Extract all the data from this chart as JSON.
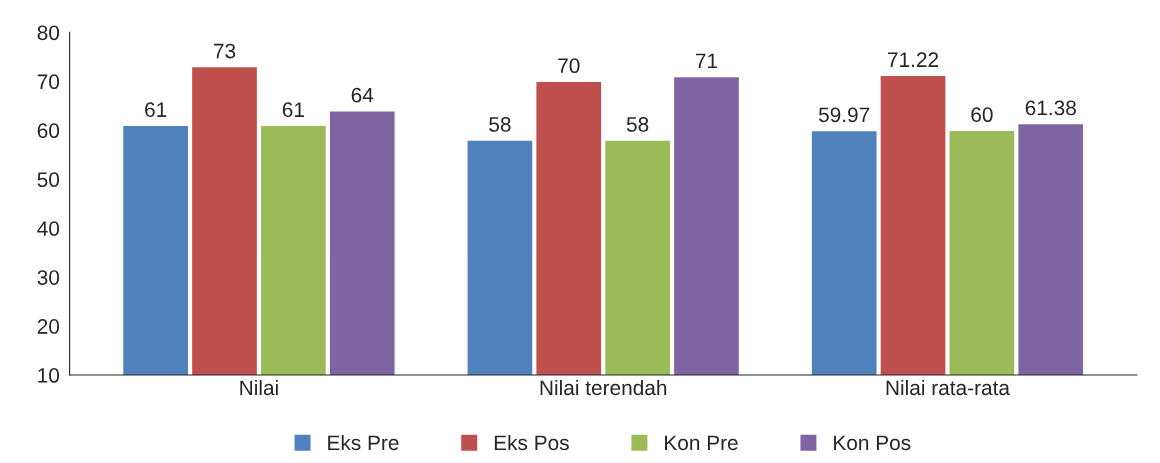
{
  "chart_data": {
    "type": "bar",
    "categories": [
      "Nilai",
      "Nilai terendah",
      "Nilai rata-rata"
    ],
    "series": [
      {
        "name": "Eks Pre",
        "color": "#4f81bd",
        "values": [
          61,
          58,
          59.97
        ]
      },
      {
        "name": "Eks Pos",
        "color": "#c0504d",
        "values": [
          73,
          70,
          71.22
        ]
      },
      {
        "name": "Kon Pre",
        "color": "#9bbb59",
        "values": [
          61,
          58,
          60
        ]
      },
      {
        "name": "Kon Pos",
        "color": "#8064a2",
        "values": [
          64,
          71,
          61.38
        ]
      }
    ],
    "ylim": [
      10,
      80
    ],
    "yticks": [
      10,
      20,
      30,
      40,
      50,
      60,
      70,
      80
    ],
    "data_labels": true,
    "legend": "bottom",
    "grid": false
  }
}
